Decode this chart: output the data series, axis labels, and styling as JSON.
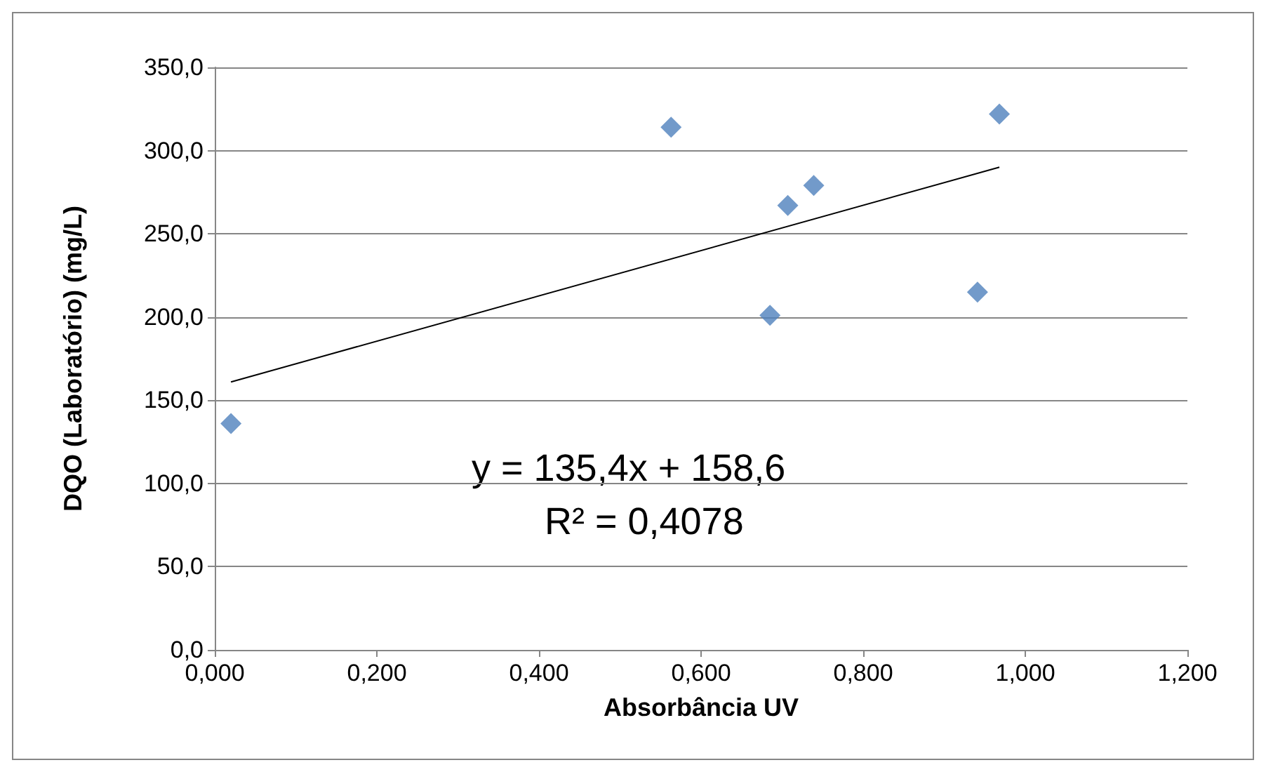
{
  "chart_data": {
    "type": "scatter",
    "xlabel": "Absorbância UV",
    "ylabel": "DQO (Laboratório) (mg/L)",
    "series": [
      {
        "color": "#4f81bd",
        "marker": "diamond",
        "x": [
          0.02,
          0.563,
          0.707,
          0.739,
          0.685,
          0.941,
          0.968
        ],
        "values": [
          136,
          314,
          267,
          279,
          201,
          215,
          322
        ]
      },
      {
        "type": "line",
        "color": "#000000",
        "marker": "none",
        "x": [
          0.02,
          0.968
        ],
        "values": [
          161,
          290
        ]
      }
    ],
    "xlim": [
      0,
      1.2
    ],
    "ylim": [
      0,
      350
    ],
    "xticks": [
      {
        "value": 0,
        "label": "0,000"
      },
      {
        "value": 0.2,
        "label": "0,200"
      },
      {
        "value": 0.4,
        "label": "0,400"
      },
      {
        "value": 0.6,
        "label": "0,600"
      },
      {
        "value": 0.8,
        "label": "0,800"
      },
      {
        "value": 1,
        "label": "1,000"
      },
      {
        "value": 1.2,
        "label": "1,200"
      }
    ],
    "yticks": [
      {
        "value": 0,
        "label": "0,0"
      },
      {
        "value": 50,
        "label": "50,0"
      },
      {
        "value": 100,
        "label": "100,0"
      },
      {
        "value": 150,
        "label": "150,0"
      },
      {
        "value": 200,
        "label": "200,0"
      },
      {
        "value": 250,
        "label": "250,0"
      },
      {
        "value": 300,
        "label": "300,0"
      },
      {
        "value": 350,
        "label": "350,0"
      }
    ],
    "grid": "y",
    "annotations": [
      "y = 135,4x + 158,6",
      "R² = 0,4078"
    ]
  }
}
